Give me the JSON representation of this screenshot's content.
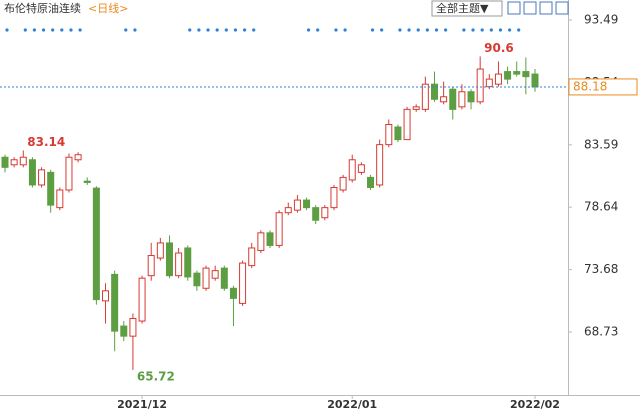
{
  "toolbar": {
    "title": "布伦特原油连续",
    "period": "<日线>",
    "theme_button": "全部主题▼"
  },
  "chart_data": {
    "type": "candlestick",
    "categories": [
      null,
      null,
      null,
      null,
      null,
      null,
      null,
      null,
      null,
      null,
      null,
      null,
      null,
      null,
      null,
      "2021/12",
      null,
      null,
      null,
      null,
      null,
      null,
      null,
      null,
      null,
      null,
      null,
      null,
      null,
      null,
      null,
      null,
      null,
      null,
      null,
      null,
      null,
      null,
      "2022/01",
      null,
      null,
      null,
      null,
      null,
      null,
      null,
      null,
      null,
      null,
      null,
      null,
      null,
      null,
      null,
      null,
      null,
      null,
      null,
      "2022/02"
    ],
    "open": [
      82.6,
      82.0,
      82.0,
      82.4,
      80.4,
      81.4,
      78.6,
      80.0,
      82.4,
      80.7,
      80.15,
      71.2,
      73.3,
      69.2,
      68.4,
      69.6,
      73.2,
      74.6,
      75.8,
      73.2,
      75.4,
      73.4,
      72.2,
      73.0,
      73.8,
      72.2,
      71.0,
      74.0,
      75.2,
      76.6,
      75.6,
      78.2,
      78.4,
      79.2,
      78.6,
      77.8,
      78.6,
      80.0,
      80.8,
      81.4,
      81.0,
      80.4,
      83.6,
      85.0,
      84.0,
      86.4,
      86.4,
      88.4,
      87.0,
      88.0,
      86.6,
      87.8,
      87.0,
      88.2,
      88.4,
      89.4,
      89.4,
      89.4,
      89.2
    ],
    "high": [
      82.8,
      82.6,
      83.14,
      82.6,
      81.8,
      81.6,
      80.2,
      82.9,
      83.0,
      81.0,
      80.3,
      72.6,
      73.6,
      69.6,
      70.2,
      73.2,
      75.8,
      76.2,
      76.4,
      75.4,
      75.6,
      73.6,
      74.0,
      74.0,
      74.0,
      72.4,
      74.4,
      75.8,
      76.8,
      76.8,
      78.4,
      79.0,
      79.6,
      79.4,
      78.8,
      78.8,
      80.4,
      81.2,
      82.8,
      82.2,
      81.2,
      84.0,
      85.6,
      85.2,
      86.6,
      86.8,
      89.0,
      89.4,
      88.6,
      88.2,
      88.4,
      88.0,
      90.6,
      89.2,
      90.2,
      89.8,
      90.2,
      90.52,
      89.6
    ],
    "low": [
      81.4,
      81.8,
      81.8,
      80.2,
      80.2,
      78.2,
      78.4,
      79.8,
      82.2,
      80.4,
      70.9,
      69.4,
      67.2,
      68.0,
      65.72,
      69.4,
      72.8,
      74.4,
      73.0,
      73.0,
      72.8,
      72.0,
      72.0,
      72.8,
      72.0,
      69.2,
      70.8,
      73.8,
      75.0,
      75.4,
      75.4,
      78.0,
      78.2,
      78.4,
      77.3,
      77.6,
      78.4,
      79.8,
      80.6,
      81.2,
      80.0,
      80.2,
      83.4,
      83.8,
      84.0,
      86.2,
      86.2,
      87.0,
      86.8,
      85.6,
      86.4,
      86.4,
      86.8,
      88.0,
      88.2,
      88.4,
      89.0,
      87.6,
      87.8
    ],
    "close": [
      81.8,
      82.4,
      82.6,
      80.4,
      81.6,
      78.8,
      80.0,
      82.6,
      82.8,
      80.6,
      71.3,
      72.0,
      68.8,
      68.4,
      69.8,
      73.0,
      74.8,
      75.8,
      73.2,
      75.0,
      73.1,
      72.4,
      73.8,
      73.6,
      72.2,
      71.4,
      74.2,
      75.4,
      76.6,
      75.6,
      78.2,
      78.6,
      79.2,
      78.6,
      77.6,
      78.6,
      80.2,
      81.0,
      82.4,
      82.0,
      80.2,
      83.6,
      85.2,
      84.0,
      86.4,
      86.6,
      88.4,
      87.2,
      87.4,
      86.4,
      87.8,
      87.0,
      89.6,
      88.8,
      89.2,
      88.8,
      89.2,
      89.0,
      88.18
    ],
    "up_color": "#d63a33",
    "down_color": "#5c9e41",
    "ylim": [
      63.73,
      95.08
    ],
    "yticks": [
      68.73,
      73.68,
      78.64,
      83.59,
      88.54,
      93.49
    ]
  }
}
